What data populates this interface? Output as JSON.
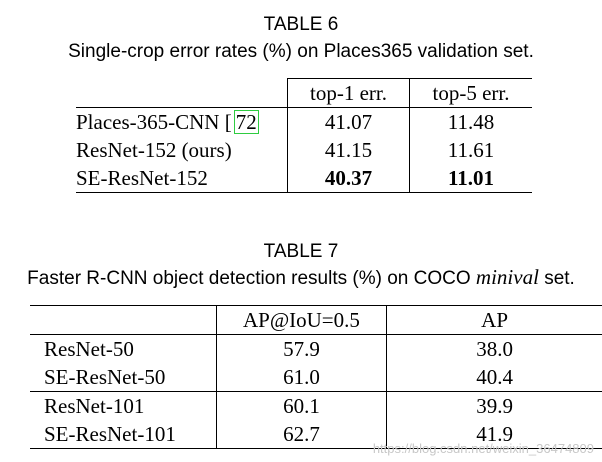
{
  "table6": {
    "label": "TABLE 6",
    "caption": "Single-crop error rates (%) on Places365 validation set.",
    "headers": [
      "",
      "top-1 err.",
      "top-5 err."
    ],
    "rows": [
      {
        "model": "Places-365-CNN",
        "ref": "72",
        "top1": "41.07",
        "top5": "11.48"
      },
      {
        "model": "ResNet-152 (ours)",
        "ref": "",
        "top1": "41.15",
        "top5": "11.61"
      },
      {
        "model": "SE-ResNet-152",
        "ref": "",
        "top1": "40.37",
        "top5": "11.01"
      }
    ]
  },
  "table7": {
    "label": "TABLE 7",
    "caption_prefix": "Faster R-CNN object detection results (%) on COCO ",
    "caption_italic": "minival",
    "caption_suffix": " set.",
    "headers": [
      "",
      "AP@IoU=0.5",
      "AP"
    ],
    "rows": [
      {
        "model": "ResNet-50",
        "ap50": "57.9",
        "ap": "38.0"
      },
      {
        "model": "SE-ResNet-50",
        "ap50": "61.0",
        "ap": "40.4"
      },
      {
        "model": "ResNet-101",
        "ap50": "60.1",
        "ap": "39.9"
      },
      {
        "model": "SE-ResNet-101",
        "ap50": "62.7",
        "ap": "41.9"
      }
    ]
  },
  "watermark": "https://blog.csdn.net/weixin_36474809"
}
